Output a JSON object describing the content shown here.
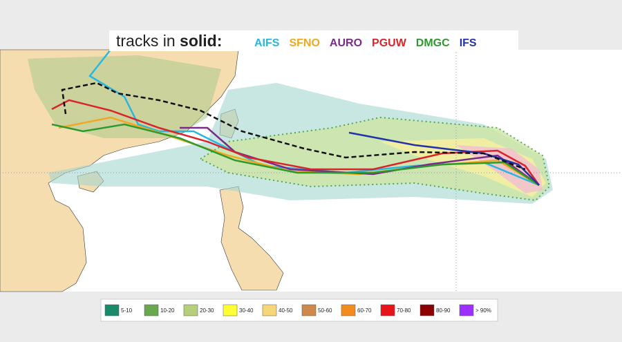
{
  "header": {
    "lead": "tracks in",
    "emphasis": "solid:"
  },
  "models": [
    {
      "name": "AIFS",
      "color": "#29b6e0"
    },
    {
      "name": "SFNO",
      "color": "#f0a820"
    },
    {
      "name": "AURO",
      "color": "#7b2a8c"
    },
    {
      "name": "PGUW",
      "color": "#d9252a"
    },
    {
      "name": "DMGC",
      "color": "#2e9a2e"
    },
    {
      "name": "IFS",
      "color": "#2233aa"
    }
  ],
  "legend": [
    {
      "label": "5-10",
      "color": "#1a8a6a"
    },
    {
      "label": "10-20",
      "color": "#6aa84f"
    },
    {
      "label": "20-30",
      "color": "#b5cf7a"
    },
    {
      "label": "30-40",
      "color": "#ffff33"
    },
    {
      "label": "40-50",
      "color": "#f5d77a"
    },
    {
      "label": "50-60",
      "color": "#cd8a4a"
    },
    {
      "label": "60-70",
      "color": "#f28c1e"
    },
    {
      "label": "70-80",
      "color": "#e8141c"
    },
    {
      "label": "80-90",
      "color": "#8b0000"
    },
    {
      "label": "> 90%",
      "color": "#9b30ff"
    }
  ]
}
